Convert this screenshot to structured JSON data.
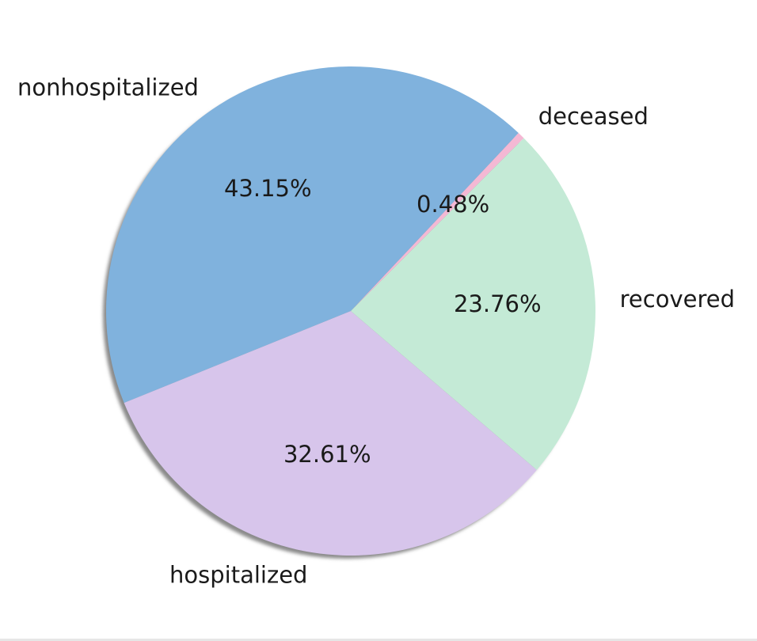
{
  "chart_data": {
    "type": "pie",
    "categories": [
      "deceased",
      "nonhospitalized",
      "hospitalized",
      "recovered"
    ],
    "values": [
      0.48,
      43.15,
      32.61,
      23.76
    ],
    "value_labels": [
      "0.48%",
      "43.15%",
      "32.61%",
      "23.76%"
    ],
    "colors": [
      "#f4b8d4",
      "#80b2dd",
      "#d7c5eb",
      "#c4eAd6"
    ],
    "title": "",
    "shadow": true,
    "legend": "none"
  }
}
